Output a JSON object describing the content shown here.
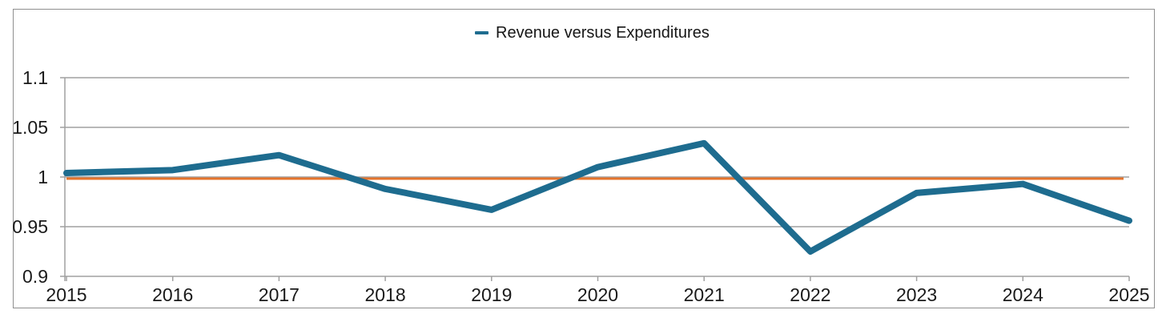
{
  "chart_data": {
    "type": "line",
    "title": "",
    "legend": "Revenue versus Expenditures",
    "legend_position": "top-center",
    "categories": [
      "2015",
      "2016",
      "2017",
      "2018",
      "2019",
      "2020",
      "2021",
      "2022",
      "2023",
      "2024",
      "2025"
    ],
    "series": [
      {
        "name": "Revenue versus Expenditures",
        "color": "#1e6c8f",
        "values": [
          1.004,
          1.007,
          1.022,
          0.988,
          0.967,
          1.01,
          1.034,
          0.925,
          0.984,
          0.993,
          0.956
        ]
      }
    ],
    "reference_line": {
      "value": 1.0,
      "color": "#e5742c"
    },
    "ylim": [
      0.9,
      1.1
    ],
    "yticks": [
      0.9,
      0.95,
      1,
      1.05,
      1.1
    ],
    "ytick_labels": [
      "0.9",
      "0.95",
      "1",
      "1.05",
      "1.1"
    ],
    "grid": true,
    "gridline_color": "#a0a0a0",
    "axis_text_color": "#1a1a1a"
  }
}
